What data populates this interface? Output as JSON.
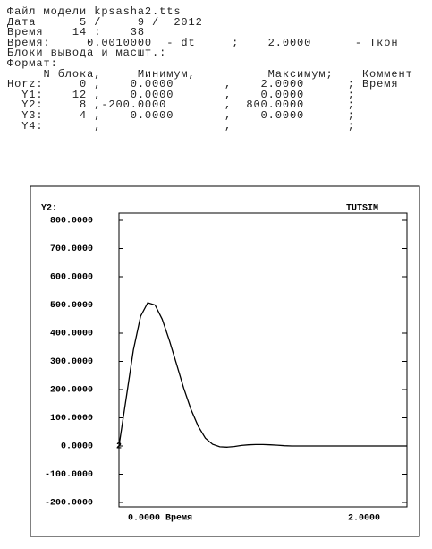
{
  "header": {
    "lines": [
      "Файл модели kpsasha2.tts",
      "Дата      5 /     9 /  2012",
      "Время    14 :    38",
      "Время:     0.0010000  - dt     ;    2.0000      - Ткон",
      "Блоки вывода и масшт.:",
      "Формат:",
      "     N блока,     Минимум,          Максимум;    Коммент",
      "Horz:     0 ,    0.0000       ,    2.0000      ; Время",
      "  Y1:    12 ,    0.0000       ,    0.0000      ;",
      "  Y2:     8 ,-200.0000        ,  800.0000      ;",
      "  Y3:     4 ,    0.0000       ,    0.0000      ;",
      "  Y4:       ,                 ,                ;"
    ]
  },
  "chart_data": {
    "type": "line",
    "title": "TUTSIM",
    "y_label": "Y2:",
    "x_label": "Время",
    "x": [
      0,
      0.05,
      0.1,
      0.15,
      0.2,
      0.25,
      0.3,
      0.35,
      0.4,
      0.45,
      0.5,
      0.55,
      0.6,
      0.65,
      0.7,
      0.75,
      0.8,
      0.85,
      0.9,
      0.95,
      1.0,
      1.05,
      1.1,
      1.15,
      1.2,
      1.4,
      1.6,
      1.8,
      2.0
    ],
    "series": [
      {
        "name": "2",
        "color": "#000000",
        "values": [
          0,
          170,
          340,
          460,
          508,
          500,
          450,
          375,
          290,
          205,
          130,
          70,
          28,
          6,
          -3,
          -4,
          -2,
          2,
          4,
          5,
          5,
          4,
          3,
          1,
          0,
          0,
          0,
          0,
          0
        ]
      }
    ],
    "xlim": [
      0,
      2
    ],
    "xticks": [
      {
        "value": 0,
        "label": "0.0000"
      },
      {
        "value": 2,
        "label": "2.0000"
      }
    ],
    "ylim": [
      -200,
      800
    ],
    "yticks": [
      {
        "value": 800,
        "label": "800.0000"
      },
      {
        "value": 700,
        "label": "700.0000"
      },
      {
        "value": 600,
        "label": "600.0000"
      },
      {
        "value": 500,
        "label": "500.0000"
      },
      {
        "value": 400,
        "label": "400.0000"
      },
      {
        "value": 300,
        "label": "300.0000"
      },
      {
        "value": 200,
        "label": "200.0000"
      },
      {
        "value": 100,
        "label": "100.0000"
      },
      {
        "value": 0,
        "label": "0.0000"
      },
      {
        "value": -100,
        "label": "-100.0000"
      },
      {
        "value": -200,
        "label": "-200.0000"
      }
    ]
  }
}
